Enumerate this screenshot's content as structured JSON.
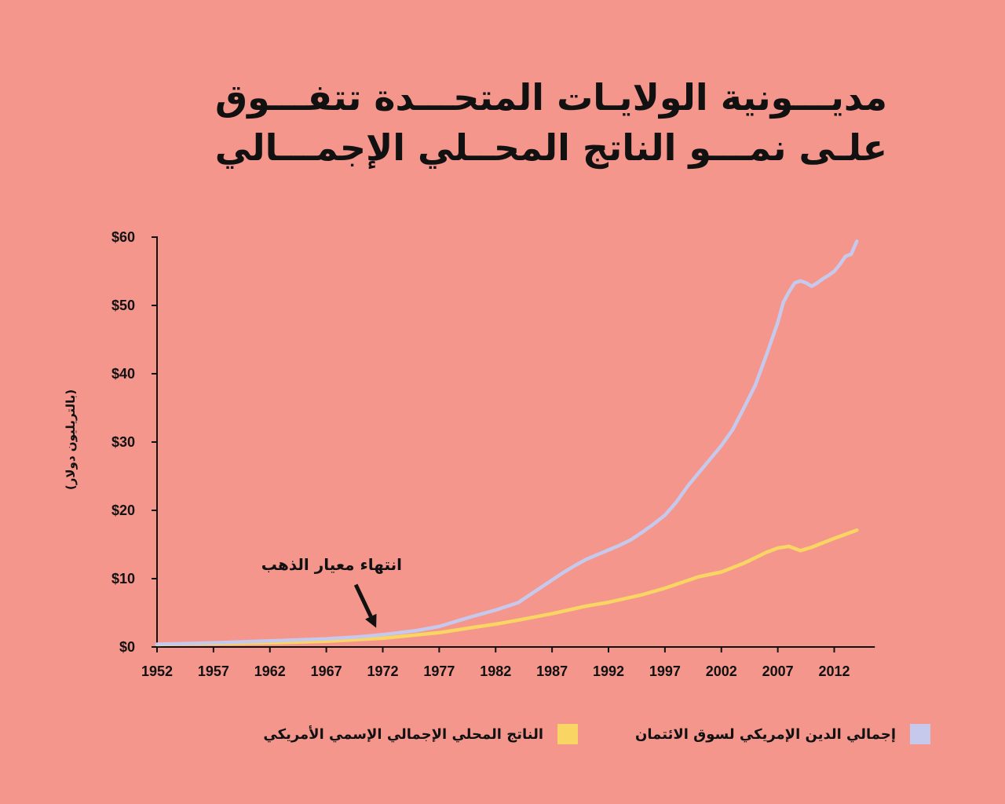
{
  "page": {
    "background": "#F4968C",
    "text_color": "#111111"
  },
  "chart_data": {
    "type": "line",
    "title": "مديـــونية الولايـات المتحـــدة تتفـــوق\nعلـى نمـــو الناتج المحــلي الإجمـــالي",
    "ylabel": "(بالتريليون دولار)",
    "xlim": [
      1952,
      2015.6
    ],
    "ylim": [
      0,
      60
    ],
    "x_ticks": [
      "1952",
      "1957",
      "1962",
      "1967",
      "1972",
      "1977",
      "1982",
      "1987",
      "1992",
      "1997",
      "2002",
      "2007",
      "2012"
    ],
    "y_ticks": [
      "$0",
      "$10",
      "$20",
      "$30",
      "$40",
      "$50",
      "$60"
    ],
    "y_tick_values": [
      0,
      10,
      20,
      30,
      40,
      50,
      60
    ],
    "grid": false,
    "legend_position": "bottom",
    "series": [
      {
        "name": "إجمالي الدين الإمريكي لسوق الائتمان",
        "color": "#C6C9EC",
        "x": [
          1952,
          1957,
          1962,
          1967,
          1970,
          1972,
          1975,
          1977,
          1979,
          1980,
          1982,
          1984,
          1985,
          1986,
          1987,
          1988,
          1989,
          1990,
          1991,
          1992,
          1993,
          1994,
          1995,
          1996,
          1997,
          1998,
          1999,
          2000,
          2001,
          2002,
          2003,
          2004,
          2005,
          2006,
          2007,
          2007.5,
          2008,
          2008.5,
          2009,
          2009.5,
          2010,
          2010.5,
          2011,
          2011.5,
          2012,
          2012.5,
          2013,
          2013.5,
          2014
        ],
        "y": [
          0.4,
          0.6,
          0.9,
          1.2,
          1.5,
          1.8,
          2.4,
          3.0,
          4.0,
          4.5,
          5.4,
          6.5,
          7.6,
          8.7,
          9.8,
          10.9,
          11.9,
          12.8,
          13.5,
          14.2,
          14.9,
          15.7,
          16.8,
          18.0,
          19.3,
          21.2,
          23.5,
          25.5,
          27.5,
          29.5,
          31.8,
          35.0,
          38.3,
          42.8,
          47.5,
          50.5,
          52.0,
          53.3,
          53.6,
          53.3,
          52.8,
          53.3,
          53.9,
          54.4,
          55.0,
          56.0,
          57.2,
          57.5,
          59.4
        ]
      },
      {
        "name": "الناتج المحلي الإجمالي الإسمي الأمريكي",
        "color": "#F9D563",
        "x": [
          1952,
          1957,
          1962,
          1967,
          1972,
          1977,
          1980,
          1982,
          1984,
          1987,
          1990,
          1992,
          1995,
          1997,
          2000,
          2002,
          2004,
          2006,
          2007,
          2008,
          2009,
          2010,
          2012,
          2014
        ],
        "y": [
          0.36,
          0.47,
          0.6,
          0.83,
          1.28,
          2.09,
          2.86,
          3.34,
          3.93,
          4.87,
          5.98,
          6.54,
          7.66,
          8.61,
          10.29,
          10.98,
          12.27,
          13.86,
          14.48,
          14.72,
          14.1,
          14.6,
          15.9,
          17.1
        ]
      }
    ],
    "annotations": [
      {
        "text": "انتهاء معيار الذهب",
        "x": 1971
      }
    ]
  }
}
